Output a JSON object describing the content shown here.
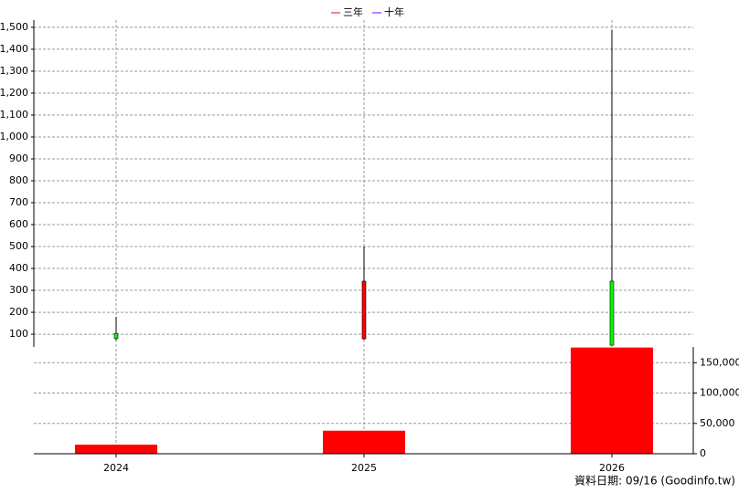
{
  "chart_data": {
    "type": "candlestick",
    "legend": [
      {
        "name": "三年",
        "color": "#ff0000"
      },
      {
        "name": "十年",
        "color": "#8000ff"
      }
    ],
    "categories": [
      "2024",
      "2025",
      "2026"
    ],
    "open": [
      104,
      79,
      342
    ],
    "high": [
      180,
      500,
      1488
    ],
    "low": [
      72,
      75,
      50
    ],
    "close": [
      80,
      342,
      50
    ],
    "up_color": "#ff0000",
    "down_color": "#00ff00",
    "ylim": [
      42,
      1533
    ],
    "yticks": [
      100,
      200,
      300,
      400,
      500,
      600,
      700,
      800,
      900,
      {
        "value": 1000,
        "label": "1,000"
      },
      {
        "value": 1100,
        "label": "1,100"
      },
      {
        "value": 1200,
        "label": "1,200"
      },
      {
        "value": 1300,
        "label": "1,300"
      },
      {
        "value": 1400,
        "label": "1,400"
      },
      {
        "value": 1500,
        "label": "1,500"
      }
    ],
    "grid": true,
    "volume": {
      "values": [
        15000,
        38000,
        175000
      ],
      "color": "#ff0000",
      "ylim": [
        0,
        176000
      ],
      "yticks": [
        0,
        {
          "value": 50000,
          "label": "50,000"
        },
        {
          "value": 100000,
          "label": "100,000"
        },
        {
          "value": 150000,
          "label": "150,000"
        }
      ]
    },
    "footnote": "資料日期: 09/16  (Goodinfo.tw)"
  }
}
